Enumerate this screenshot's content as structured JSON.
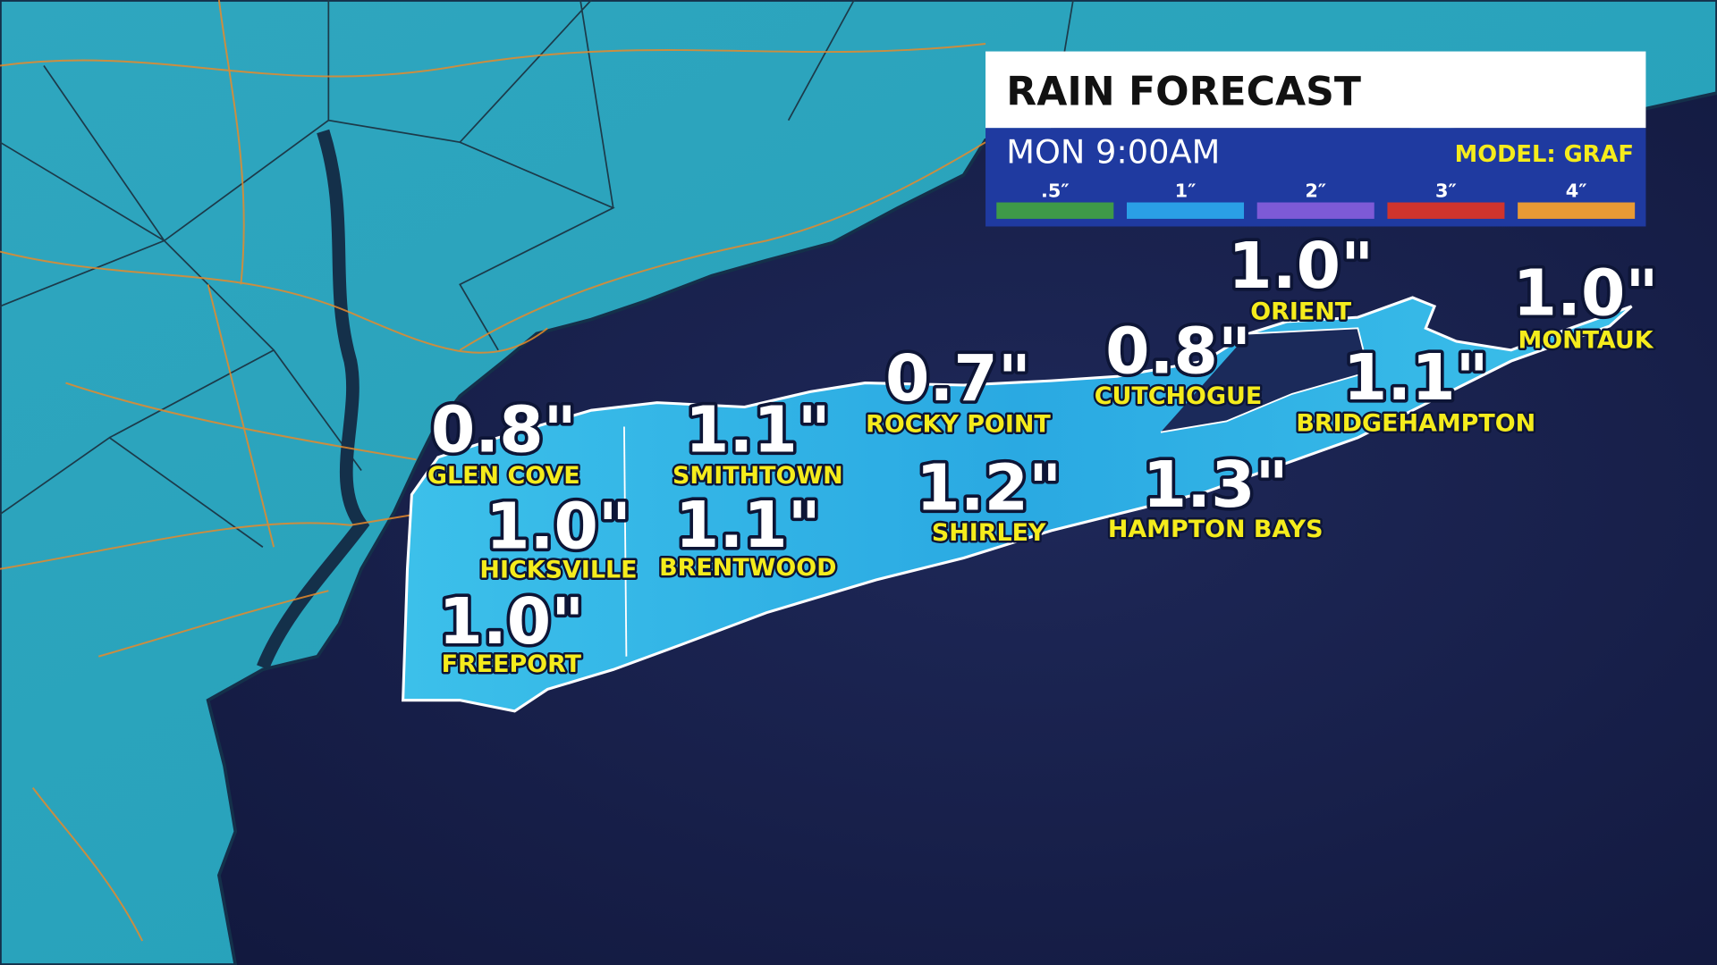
{
  "header": {
    "title": "RAIN FORECAST",
    "time": "MON 9:00AM",
    "model": "MODEL: GRAF"
  },
  "legend": [
    {
      "label": ".5″",
      "color": "#3e9a48"
    },
    {
      "label": "1″",
      "color": "#2a9fe6"
    },
    {
      "label": "2″",
      "color": "#7d5ad6"
    },
    {
      "label": "3″",
      "color": "#d0342c"
    },
    {
      "label": "4″",
      "color": "#e89a34"
    }
  ],
  "locations": [
    {
      "name": "GLEN COVE",
      "amount": "0.8\""
    },
    {
      "name": "HICKSVILLE",
      "amount": "1.0\""
    },
    {
      "name": "FREEPORT",
      "amount": "1.0\""
    },
    {
      "name": "SMITHTOWN",
      "amount": "1.1\""
    },
    {
      "name": "BRENTWOOD",
      "amount": "1.1\""
    },
    {
      "name": "ROCKY POINT",
      "amount": "0.7\""
    },
    {
      "name": "SHIRLEY",
      "amount": "1.2\""
    },
    {
      "name": "CUTCHOGUE",
      "amount": "0.8\""
    },
    {
      "name": "HAMPTON BAYS",
      "amount": "1.3\""
    },
    {
      "name": "ORIENT",
      "amount": "1.0\""
    },
    {
      "name": "BRIDGEHAMPTON",
      "amount": "1.1\""
    },
    {
      "name": "MONTAUK",
      "amount": "1.0\""
    }
  ]
}
